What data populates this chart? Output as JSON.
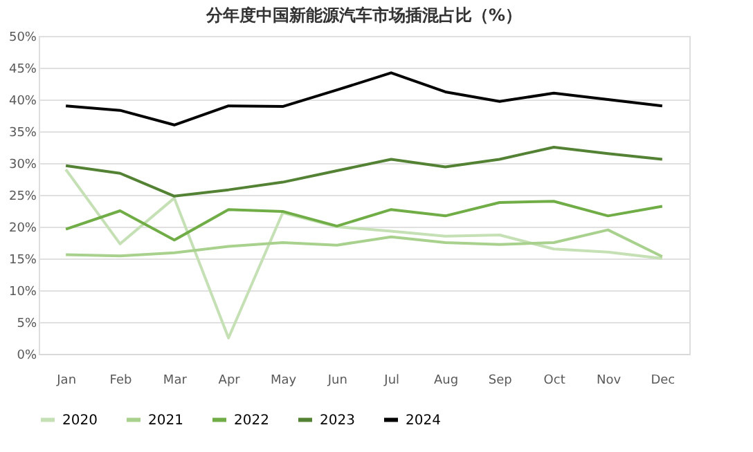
{
  "chart_data": {
    "type": "line",
    "title": "分年度中国新能源汽车市场插混占比（%）",
    "categories": [
      "Jan",
      "Feb",
      "Mar",
      "Apr",
      "May",
      "Jun",
      "Jul",
      "Aug",
      "Sep",
      "Oct",
      "Nov",
      "Dec"
    ],
    "series": [
      {
        "name": "2020",
        "color": "#c5e0b4",
        "values": [
          29,
          17.3,
          24.5,
          2.5,
          22.2,
          20,
          19.3,
          18.5,
          18.7,
          16.5,
          16,
          15
        ]
      },
      {
        "name": "2021",
        "color": "#a9d18e",
        "values": [
          15.6,
          15.4,
          15.9,
          16.9,
          17.5,
          17.1,
          18.4,
          17.5,
          17.2,
          17.5,
          19.5,
          15.3
        ]
      },
      {
        "name": "2022",
        "color": "#70ad47",
        "values": [
          19.6,
          22.5,
          17.9,
          22.7,
          22.4,
          20.1,
          22.7,
          21.7,
          23.8,
          24,
          21.7,
          23.2
        ]
      },
      {
        "name": "2023",
        "color": "#548235",
        "values": [
          29.6,
          28.4,
          24.8,
          25.8,
          27,
          28.8,
          30.6,
          29.4,
          30.6,
          32.5,
          31.5,
          30.6
        ]
      },
      {
        "name": "2024",
        "color": "#000000",
        "values": [
          39,
          38.3,
          36,
          39,
          38.9,
          41.5,
          44.2,
          41.2,
          39.7,
          41,
          40,
          39
        ]
      }
    ],
    "ylim": [
      0,
      50
    ],
    "yticks": [
      {
        "value": 0,
        "label": "0%"
      },
      {
        "value": 5,
        "label": "5%"
      },
      {
        "value": 10,
        "label": "10%"
      },
      {
        "value": 15,
        "label": "15%"
      },
      {
        "value": 20,
        "label": "20%"
      },
      {
        "value": 25,
        "label": "25%"
      },
      {
        "value": 30,
        "label": "30%"
      },
      {
        "value": 35,
        "label": "35%"
      },
      {
        "value": 40,
        "label": "40%"
      },
      {
        "value": 45,
        "label": "45%"
      },
      {
        "value": 50,
        "label": "50%"
      }
    ],
    "grid": "y",
    "legend": "bottom",
    "marker": "none",
    "line_style": "solid"
  }
}
